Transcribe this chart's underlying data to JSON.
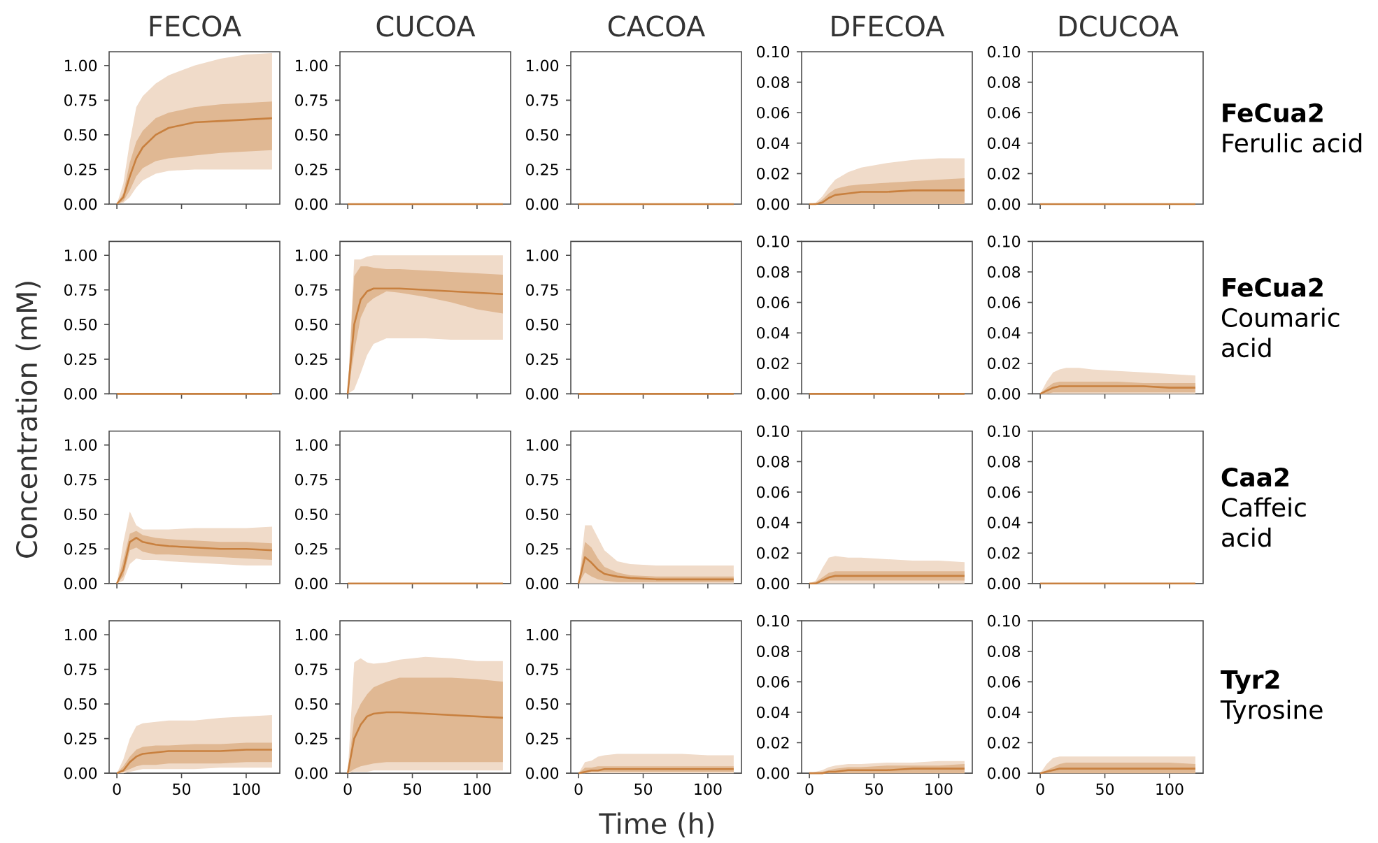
{
  "chart_data": [
    {
      "type": "line",
      "title": "FECOA",
      "x": [
        0,
        5,
        10,
        15,
        20,
        30,
        40,
        60,
        80,
        100,
        120
      ],
      "xlim": [
        -6,
        126
      ],
      "xticks": [
        0,
        50,
        100
      ],
      "ylim": [
        0,
        1.1
      ],
      "yticks": [
        {
          "value": 0,
          "label": "0.00"
        },
        {
          "value": 0.25,
          "label": "0.25"
        },
        {
          "value": 0.5,
          "label": "0.50"
        },
        {
          "value": 0.75,
          "label": "0.75"
        },
        {
          "value": 1,
          "label": "1.00"
        }
      ],
      "tick_labels": "y",
      "series": [
        {
          "color": "#c8803f",
          "values": [
            null,
            null,
            null,
            null,
            null,
            null,
            null,
            null,
            null,
            null,
            null
          ],
          "lower": [
            0,
            0.01,
            0.05,
            0.12,
            0.17,
            0.22,
            0.24,
            0.25,
            0.25,
            0.25,
            0.25
          ],
          "upper": [
            0,
            0.15,
            0.45,
            0.7,
            0.78,
            0.87,
            0.93,
            1.0,
            1.05,
            1.08,
            1.09
          ]
        },
        {
          "color": "#c8803f",
          "values": [
            0,
            0.05,
            0.2,
            0.33,
            0.41,
            0.5,
            0.55,
            0.59,
            0.6,
            0.61,
            0.62
          ],
          "lower": [
            0,
            0.02,
            0.1,
            0.2,
            0.26,
            0.31,
            0.33,
            0.35,
            0.37,
            0.38,
            0.39
          ],
          "upper": [
            0,
            0.08,
            0.3,
            0.45,
            0.53,
            0.62,
            0.66,
            0.7,
            0.72,
            0.73,
            0.74
          ]
        }
      ]
    },
    {
      "type": "line",
      "title": "CUCOA",
      "x": [
        0,
        5,
        10,
        15,
        20,
        30,
        40,
        60,
        80,
        100,
        120
      ],
      "xlim": [
        -6,
        126
      ],
      "xticks": [
        0,
        50,
        100
      ],
      "ylim": [
        0,
        1.1
      ],
      "yticks": [
        {
          "value": 0,
          "label": "0.00"
        },
        {
          "value": 0.25,
          "label": "0.25"
        },
        {
          "value": 0.5,
          "label": "0.50"
        },
        {
          "value": 0.75,
          "label": "0.75"
        },
        {
          "value": 1,
          "label": "1.00"
        }
      ],
      "tick_labels": "y",
      "series": [
        {
          "color": "#c8803f",
          "values": [
            0,
            0,
            0,
            0,
            0,
            0,
            0,
            0,
            0,
            0,
            0
          ]
        }
      ]
    },
    {
      "type": "line",
      "title": "CACOA",
      "x": [
        0,
        5,
        10,
        15,
        20,
        30,
        40,
        60,
        80,
        100,
        120
      ],
      "xlim": [
        -6,
        126
      ],
      "xticks": [
        0,
        50,
        100
      ],
      "ylim": [
        0,
        1.1
      ],
      "yticks": [
        {
          "value": 0,
          "label": "0.00"
        },
        {
          "value": 0.25,
          "label": "0.25"
        },
        {
          "value": 0.5,
          "label": "0.50"
        },
        {
          "value": 0.75,
          "label": "0.75"
        },
        {
          "value": 1,
          "label": "1.00"
        }
      ],
      "tick_labels": "y",
      "series": [
        {
          "color": "#c8803f",
          "values": [
            0,
            0,
            0,
            0,
            0,
            0,
            0,
            0,
            0,
            0,
            0
          ]
        }
      ]
    },
    {
      "type": "line",
      "title": "DFECOA",
      "x": [
        0,
        5,
        10,
        15,
        20,
        30,
        40,
        60,
        80,
        100,
        120
      ],
      "xlim": [
        -6,
        126
      ],
      "xticks": [
        0,
        50,
        100
      ],
      "ylim": [
        0,
        0.1
      ],
      "yticks": [
        {
          "value": 0,
          "label": "0.00"
        },
        {
          "value": 0.02,
          "label": "0.02"
        },
        {
          "value": 0.04,
          "label": "0.04"
        },
        {
          "value": 0.06,
          "label": "0.06"
        },
        {
          "value": 0.08,
          "label": "0.08"
        },
        {
          "value": 0.1,
          "label": "0.10"
        }
      ],
      "tick_labels": "y",
      "series": [
        {
          "color": "#c8803f",
          "values": [
            null,
            null,
            null,
            null,
            null,
            null,
            null,
            null,
            null,
            null,
            null
          ],
          "lower": [
            0,
            0,
            0,
            0,
            0,
            0,
            0,
            0,
            0,
            0,
            0
          ],
          "upper": [
            0,
            0.001,
            0.005,
            0.011,
            0.016,
            0.021,
            0.024,
            0.027,
            0.029,
            0.03,
            0.03
          ]
        },
        {
          "color": "#c8803f",
          "values": [
            0,
            0,
            0.001,
            0.004,
            0.006,
            0.007,
            0.008,
            0.008,
            0.009,
            0.009,
            0.009
          ],
          "lower": [
            0,
            0,
            0,
            0,
            0,
            0,
            0,
            0,
            0,
            0,
            0
          ],
          "upper": [
            0,
            0,
            0.003,
            0.007,
            0.01,
            0.012,
            0.013,
            0.014,
            0.015,
            0.016,
            0.017
          ]
        }
      ]
    },
    {
      "type": "line",
      "title": "DCUCOA",
      "x": [
        0,
        5,
        10,
        15,
        20,
        30,
        40,
        60,
        80,
        100,
        120
      ],
      "xlim": [
        -6,
        126
      ],
      "xticks": [
        0,
        50,
        100
      ],
      "ylim": [
        0,
        0.1
      ],
      "yticks": [
        {
          "value": 0,
          "label": "0.00"
        },
        {
          "value": 0.02,
          "label": "0.02"
        },
        {
          "value": 0.04,
          "label": "0.04"
        },
        {
          "value": 0.06,
          "label": "0.06"
        },
        {
          "value": 0.08,
          "label": "0.08"
        },
        {
          "value": 0.1,
          "label": "0.10"
        }
      ],
      "tick_labels": "y",
      "annotations": [
        "FeCua2",
        "Ferulic acid"
      ],
      "series": [
        {
          "color": "#c8803f",
          "values": [
            0,
            0,
            0,
            0,
            0,
            0,
            0,
            0,
            0,
            0,
            0
          ]
        }
      ]
    },
    {
      "type": "line",
      "ylabel": "Concentration (mM)",
      "x": [
        0,
        5,
        10,
        15,
        20,
        30,
        40,
        60,
        80,
        100,
        120
      ],
      "xlim": [
        -6,
        126
      ],
      "xticks": [
        0,
        50,
        100
      ],
      "ylim": [
        0,
        1.1
      ],
      "yticks": [
        {
          "value": 0,
          "label": "0.00"
        },
        {
          "value": 0.25,
          "label": "0.25"
        },
        {
          "value": 0.5,
          "label": "0.50"
        },
        {
          "value": 0.75,
          "label": "0.75"
        },
        {
          "value": 1,
          "label": "1.00"
        }
      ],
      "tick_labels": "y",
      "series": [
        {
          "color": "#c8803f",
          "values": [
            0,
            0,
            0,
            0,
            0,
            0,
            0,
            0,
            0,
            0,
            0
          ]
        }
      ]
    },
    {
      "type": "line",
      "x": [
        0,
        5,
        10,
        15,
        20,
        30,
        40,
        60,
        80,
        100,
        120
      ],
      "xlim": [
        -6,
        126
      ],
      "xticks": [
        0,
        50,
        100
      ],
      "ylim": [
        0,
        1.1
      ],
      "yticks": [
        {
          "value": 0,
          "label": "0.00"
        },
        {
          "value": 0.25,
          "label": "0.25"
        },
        {
          "value": 0.5,
          "label": "0.50"
        },
        {
          "value": 0.75,
          "label": "0.75"
        },
        {
          "value": 1,
          "label": "1.00"
        }
      ],
      "tick_labels": "y",
      "series": [
        {
          "color": "#c8803f",
          "values": [
            null,
            null,
            null,
            null,
            null,
            null,
            null,
            null,
            null,
            null,
            null
          ],
          "lower": [
            0,
            0.03,
            0.15,
            0.28,
            0.36,
            0.4,
            0.4,
            0.4,
            0.39,
            0.39,
            0.39
          ],
          "upper": [
            0,
            0.97,
            0.97,
            0.99,
            1.0,
            1.0,
            1.0,
            1.0,
            1.0,
            1.0,
            1.0
          ]
        },
        {
          "color": "#c8803f",
          "values": [
            0,
            0.5,
            0.68,
            0.74,
            0.76,
            0.76,
            0.76,
            0.75,
            0.74,
            0.73,
            0.72
          ],
          "lower": [
            0,
            0.3,
            0.55,
            0.65,
            0.69,
            0.74,
            0.73,
            0.7,
            0.66,
            0.61,
            0.58
          ],
          "upper": [
            0,
            0.85,
            0.92,
            0.92,
            0.91,
            0.9,
            0.9,
            0.89,
            0.88,
            0.87,
            0.86
          ]
        }
      ]
    },
    {
      "type": "line",
      "x": [
        0,
        5,
        10,
        15,
        20,
        30,
        40,
        60,
        80,
        100,
        120
      ],
      "xlim": [
        -6,
        126
      ],
      "xticks": [
        0,
        50,
        100
      ],
      "ylim": [
        0,
        1.1
      ],
      "yticks": [
        {
          "value": 0,
          "label": "0.00"
        },
        {
          "value": 0.25,
          "label": "0.25"
        },
        {
          "value": 0.5,
          "label": "0.50"
        },
        {
          "value": 0.75,
          "label": "0.75"
        },
        {
          "value": 1,
          "label": "1.00"
        }
      ],
      "tick_labels": "y",
      "series": [
        {
          "color": "#c8803f",
          "values": [
            0,
            0,
            0,
            0,
            0,
            0,
            0,
            0,
            0,
            0,
            0
          ]
        }
      ]
    },
    {
      "type": "line",
      "x": [
        0,
        5,
        10,
        15,
        20,
        30,
        40,
        60,
        80,
        100,
        120
      ],
      "xlim": [
        -6,
        126
      ],
      "xticks": [
        0,
        50,
        100
      ],
      "ylim": [
        0,
        0.1
      ],
      "yticks": [
        {
          "value": 0,
          "label": "0.00"
        },
        {
          "value": 0.02,
          "label": "0.02"
        },
        {
          "value": 0.04,
          "label": "0.04"
        },
        {
          "value": 0.06,
          "label": "0.06"
        },
        {
          "value": 0.08,
          "label": "0.08"
        },
        {
          "value": 0.1,
          "label": "0.10"
        }
      ],
      "tick_labels": "y",
      "series": [
        {
          "color": "#c8803f",
          "values": [
            0,
            0,
            0,
            0,
            0,
            0,
            0,
            0,
            0,
            0,
            0
          ]
        }
      ]
    },
    {
      "type": "line",
      "x": [
        0,
        5,
        10,
        15,
        20,
        30,
        40,
        60,
        80,
        100,
        120
      ],
      "xlim": [
        -6,
        126
      ],
      "xticks": [
        0,
        50,
        100
      ],
      "ylim": [
        0,
        0.1
      ],
      "yticks": [
        {
          "value": 0,
          "label": "0.00"
        },
        {
          "value": 0.02,
          "label": "0.02"
        },
        {
          "value": 0.04,
          "label": "0.04"
        },
        {
          "value": 0.06,
          "label": "0.06"
        },
        {
          "value": 0.08,
          "label": "0.08"
        },
        {
          "value": 0.1,
          "label": "0.10"
        }
      ],
      "tick_labels": "y",
      "annotations": [
        "FeCua2",
        "Coumaric",
        "acid"
      ],
      "series": [
        {
          "color": "#c8803f",
          "values": [
            null,
            null,
            null,
            null,
            null,
            null,
            null,
            null,
            null,
            null,
            null
          ],
          "lower": [
            0,
            0,
            0,
            0,
            0,
            0,
            0,
            0,
            0,
            0,
            0
          ],
          "upper": [
            0,
            0.008,
            0.014,
            0.016,
            0.017,
            0.017,
            0.016,
            0.015,
            0.014,
            0.013,
            0.012
          ]
        },
        {
          "color": "#c8803f",
          "values": [
            0,
            0.002,
            0.004,
            0.005,
            0.005,
            0.005,
            0.005,
            0.005,
            0.005,
            0.004,
            0.004
          ],
          "lower": [
            0,
            0,
            0.001,
            0.001,
            0.001,
            0.001,
            0.001,
            0.001,
            0.001,
            0.001,
            0.001
          ],
          "upper": [
            0,
            0.004,
            0.007,
            0.008,
            0.008,
            0.008,
            0.008,
            0.008,
            0.007,
            0.007,
            0.007
          ]
        }
      ]
    },
    {
      "type": "line",
      "x": [
        0,
        5,
        10,
        15,
        20,
        30,
        40,
        60,
        80,
        100,
        120
      ],
      "xlim": [
        -6,
        126
      ],
      "xticks": [
        0,
        50,
        100
      ],
      "ylim": [
        0,
        1.1
      ],
      "yticks": [
        {
          "value": 0,
          "label": "0.00"
        },
        {
          "value": 0.25,
          "label": "0.25"
        },
        {
          "value": 0.5,
          "label": "0.50"
        },
        {
          "value": 0.75,
          "label": "0.75"
        },
        {
          "value": 1,
          "label": "1.00"
        }
      ],
      "tick_labels": "y",
      "series": [
        {
          "color": "#c8803f",
          "values": [
            null,
            null,
            null,
            null,
            null,
            null,
            null,
            null,
            null,
            null,
            null
          ],
          "lower": [
            0,
            0.02,
            0.14,
            0.18,
            0.17,
            0.17,
            0.16,
            0.15,
            0.14,
            0.13,
            0.13
          ],
          "upper": [
            0,
            0.3,
            0.52,
            0.42,
            0.39,
            0.39,
            0.39,
            0.4,
            0.4,
            0.4,
            0.41
          ]
        },
        {
          "color": "#c8803f",
          "values": [
            0,
            0.1,
            0.3,
            0.33,
            0.3,
            0.28,
            0.27,
            0.26,
            0.25,
            0.25,
            0.24
          ],
          "lower": [
            0,
            0.05,
            0.24,
            0.26,
            0.23,
            0.21,
            0.21,
            0.2,
            0.19,
            0.18,
            0.17
          ],
          "upper": [
            0,
            0.17,
            0.36,
            0.38,
            0.35,
            0.33,
            0.32,
            0.31,
            0.3,
            0.3,
            0.29
          ]
        }
      ]
    },
    {
      "type": "line",
      "x": [
        0,
        5,
        10,
        15,
        20,
        30,
        40,
        60,
        80,
        100,
        120
      ],
      "xlim": [
        -6,
        126
      ],
      "xticks": [
        0,
        50,
        100
      ],
      "ylim": [
        0,
        1.1
      ],
      "yticks": [
        {
          "value": 0,
          "label": "0.00"
        },
        {
          "value": 0.25,
          "label": "0.25"
        },
        {
          "value": 0.5,
          "label": "0.50"
        },
        {
          "value": 0.75,
          "label": "0.75"
        },
        {
          "value": 1,
          "label": "1.00"
        }
      ],
      "tick_labels": "y",
      "series": [
        {
          "color": "#c8803f",
          "values": [
            0,
            0,
            0,
            0,
            0,
            0,
            0,
            0,
            0,
            0,
            0
          ]
        }
      ]
    },
    {
      "type": "line",
      "x": [
        0,
        5,
        10,
        15,
        20,
        30,
        40,
        60,
        80,
        100,
        120
      ],
      "xlim": [
        -6,
        126
      ],
      "xticks": [
        0,
        50,
        100
      ],
      "ylim": [
        0,
        1.1
      ],
      "yticks": [
        {
          "value": 0,
          "label": "0.00"
        },
        {
          "value": 0.25,
          "label": "0.25"
        },
        {
          "value": 0.5,
          "label": "0.50"
        },
        {
          "value": 0.75,
          "label": "0.75"
        },
        {
          "value": 1,
          "label": "1.00"
        }
      ],
      "tick_labels": "y",
      "series": [
        {
          "color": "#c8803f",
          "values": [
            null,
            null,
            null,
            null,
            null,
            null,
            null,
            null,
            null,
            null,
            null
          ],
          "lower": [
            0,
            0,
            0,
            0,
            0,
            0,
            0,
            0,
            0,
            0,
            0
          ],
          "upper": [
            0,
            0.42,
            0.42,
            0.33,
            0.24,
            0.16,
            0.14,
            0.13,
            0.13,
            0.13,
            0.13
          ]
        },
        {
          "color": "#c8803f",
          "values": [
            0,
            0.19,
            0.15,
            0.1,
            0.07,
            0.05,
            0.04,
            0.03,
            0.03,
            0.03,
            0.03
          ],
          "lower": [
            0,
            0.08,
            0.05,
            0.03,
            0.02,
            0.01,
            0.01,
            0.01,
            0.01,
            0.01,
            0.01
          ],
          "upper": [
            0,
            0.3,
            0.26,
            0.18,
            0.12,
            0.08,
            0.06,
            0.05,
            0.05,
            0.05,
            0.05
          ]
        }
      ]
    },
    {
      "type": "line",
      "x": [
        0,
        5,
        10,
        15,
        20,
        30,
        40,
        60,
        80,
        100,
        120
      ],
      "xlim": [
        -6,
        126
      ],
      "xticks": [
        0,
        50,
        100
      ],
      "ylim": [
        0,
        0.1
      ],
      "yticks": [
        {
          "value": 0,
          "label": "0.00"
        },
        {
          "value": 0.02,
          "label": "0.02"
        },
        {
          "value": 0.04,
          "label": "0.04"
        },
        {
          "value": 0.06,
          "label": "0.06"
        },
        {
          "value": 0.08,
          "label": "0.08"
        },
        {
          "value": 0.1,
          "label": "0.10"
        }
      ],
      "tick_labels": "y",
      "series": [
        {
          "color": "#c8803f",
          "values": [
            null,
            null,
            null,
            null,
            null,
            null,
            null,
            null,
            null,
            null,
            null
          ],
          "lower": [
            0,
            0,
            0,
            0,
            0,
            0,
            0,
            0,
            0,
            0,
            0
          ],
          "upper": [
            0,
            0.002,
            0.01,
            0.017,
            0.018,
            0.017,
            0.017,
            0.016,
            0.015,
            0.015,
            0.014
          ]
        },
        {
          "color": "#c8803f",
          "values": [
            0,
            0,
            0.002,
            0.004,
            0.005,
            0.005,
            0.005,
            0.005,
            0.005,
            0.005,
            0.005
          ],
          "lower": [
            0,
            0,
            0.001,
            0.002,
            0.002,
            0.002,
            0.002,
            0.002,
            0.002,
            0.002,
            0.002
          ],
          "upper": [
            0,
            0.001,
            0.004,
            0.007,
            0.008,
            0.008,
            0.008,
            0.008,
            0.008,
            0.008,
            0.008
          ]
        }
      ]
    },
    {
      "type": "line",
      "x": [
        0,
        5,
        10,
        15,
        20,
        30,
        40,
        60,
        80,
        100,
        120
      ],
      "xlim": [
        -6,
        126
      ],
      "xticks": [
        0,
        50,
        100
      ],
      "ylim": [
        0,
        0.1
      ],
      "yticks": [
        {
          "value": 0,
          "label": "0.00"
        },
        {
          "value": 0.02,
          "label": "0.02"
        },
        {
          "value": 0.04,
          "label": "0.04"
        },
        {
          "value": 0.06,
          "label": "0.06"
        },
        {
          "value": 0.08,
          "label": "0.08"
        },
        {
          "value": 0.1,
          "label": "0.10"
        }
      ],
      "tick_labels": "y",
      "annotations": [
        "Caa2",
        "Caffeic",
        "acid"
      ],
      "series": [
        {
          "color": "#c8803f",
          "values": [
            0,
            0,
            0,
            0,
            0,
            0,
            0,
            0,
            0,
            0,
            0
          ]
        }
      ]
    },
    {
      "type": "line",
      "x": [
        0,
        5,
        10,
        15,
        20,
        30,
        40,
        60,
        80,
        100,
        120
      ],
      "xlim": [
        -6,
        126
      ],
      "xticks": [
        0,
        50,
        100
      ],
      "ylim": [
        0,
        1.1
      ],
      "yticks": [
        {
          "value": 0,
          "label": "0.00"
        },
        {
          "value": 0.25,
          "label": "0.25"
        },
        {
          "value": 0.5,
          "label": "0.50"
        },
        {
          "value": 0.75,
          "label": "0.75"
        },
        {
          "value": 1,
          "label": "1.00"
        }
      ],
      "series": [
        {
          "color": "#c8803f",
          "values": [
            null,
            null,
            null,
            null,
            null,
            null,
            null,
            null,
            null,
            null,
            null
          ],
          "lower": [
            0,
            0,
            0.01,
            0.02,
            0.03,
            0.03,
            0.03,
            0.03,
            0.04,
            0.04,
            0.04
          ],
          "upper": [
            0,
            0.1,
            0.25,
            0.34,
            0.36,
            0.37,
            0.38,
            0.38,
            0.4,
            0.41,
            0.42
          ]
        },
        {
          "color": "#c8803f",
          "values": [
            0,
            0.02,
            0.08,
            0.12,
            0.14,
            0.15,
            0.16,
            0.16,
            0.16,
            0.17,
            0.17
          ],
          "lower": [
            0,
            0.01,
            0.03,
            0.05,
            0.06,
            0.06,
            0.07,
            0.07,
            0.07,
            0.08,
            0.08
          ],
          "upper": [
            0,
            0.05,
            0.12,
            0.17,
            0.19,
            0.2,
            0.2,
            0.21,
            0.21,
            0.22,
            0.22
          ]
        }
      ]
    },
    {
      "type": "line",
      "x": [
        0,
        5,
        10,
        15,
        20,
        30,
        40,
        60,
        80,
        100,
        120
      ],
      "xlim": [
        -6,
        126
      ],
      "xticks": [
        0,
        50,
        100
      ],
      "ylim": [
        0,
        1.1
      ],
      "yticks": [
        {
          "value": 0,
          "label": "0.00"
        },
        {
          "value": 0.25,
          "label": "0.25"
        },
        {
          "value": 0.5,
          "label": "0.50"
        },
        {
          "value": 0.75,
          "label": "0.75"
        },
        {
          "value": 1,
          "label": "1.00"
        }
      ],
      "series": [
        {
          "color": "#c8803f",
          "values": [
            null,
            null,
            null,
            null,
            null,
            null,
            null,
            null,
            null,
            null,
            null
          ],
          "lower": [
            0,
            0.01,
            0.01,
            0.01,
            0.02,
            0.02,
            0.02,
            0.02,
            0.02,
            0.02,
            0.02
          ],
          "upper": [
            0,
            0.8,
            0.83,
            0.8,
            0.79,
            0.8,
            0.82,
            0.84,
            0.83,
            0.81,
            0.81
          ]
        },
        {
          "color": "#c8803f",
          "values": [
            0,
            0.25,
            0.35,
            0.41,
            0.43,
            0.44,
            0.44,
            0.43,
            0.42,
            0.41,
            0.4
          ],
          "lower": [
            0,
            0.03,
            0.05,
            0.06,
            0.07,
            0.08,
            0.08,
            0.08,
            0.08,
            0.08,
            0.08
          ],
          "upper": [
            0,
            0.4,
            0.5,
            0.57,
            0.62,
            0.66,
            0.69,
            0.69,
            0.69,
            0.68,
            0.66
          ]
        }
      ]
    },
    {
      "type": "line",
      "xlabel": "Time (h)",
      "x": [
        0,
        5,
        10,
        15,
        20,
        30,
        40,
        60,
        80,
        100,
        120
      ],
      "xlim": [
        -6,
        126
      ],
      "xticks": [
        0,
        50,
        100
      ],
      "ylim": [
        0,
        1.1
      ],
      "yticks": [
        {
          "value": 0,
          "label": "0.00"
        },
        {
          "value": 0.25,
          "label": "0.25"
        },
        {
          "value": 0.5,
          "label": "0.50"
        },
        {
          "value": 0.75,
          "label": "0.75"
        },
        {
          "value": 1,
          "label": "1.00"
        }
      ],
      "series": [
        {
          "color": "#c8803f",
          "values": [
            null,
            null,
            null,
            null,
            null,
            null,
            null,
            null,
            null,
            null,
            null
          ],
          "lower": [
            0,
            0,
            0,
            0,
            0,
            0,
            0,
            0,
            0,
            0,
            0
          ],
          "upper": [
            0,
            0.08,
            0.09,
            0.12,
            0.13,
            0.14,
            0.14,
            0.14,
            0.14,
            0.13,
            0.13
          ]
        },
        {
          "color": "#c8803f",
          "values": [
            0,
            0.01,
            0.02,
            0.02,
            0.03,
            0.03,
            0.03,
            0.03,
            0.03,
            0.03,
            0.03
          ],
          "lower": [
            0,
            0,
            0.01,
            0.01,
            0.01,
            0.01,
            0.01,
            0.01,
            0.01,
            0.01,
            0.01
          ],
          "upper": [
            0,
            0.04,
            0.04,
            0.05,
            0.05,
            0.05,
            0.05,
            0.05,
            0.05,
            0.05,
            0.05
          ]
        }
      ]
    },
    {
      "type": "line",
      "x": [
        0,
        5,
        10,
        15,
        20,
        30,
        40,
        60,
        80,
        100,
        120
      ],
      "xlim": [
        -6,
        126
      ],
      "xticks": [
        0,
        50,
        100
      ],
      "ylim": [
        0,
        0.1
      ],
      "yticks": [
        {
          "value": 0,
          "label": "0.00"
        },
        {
          "value": 0.02,
          "label": "0.02"
        },
        {
          "value": 0.04,
          "label": "0.04"
        },
        {
          "value": 0.06,
          "label": "0.06"
        },
        {
          "value": 0.08,
          "label": "0.08"
        },
        {
          "value": 0.1,
          "label": "0.10"
        }
      ],
      "series": [
        {
          "color": "#c8803f",
          "values": [
            null,
            null,
            null,
            null,
            null,
            null,
            null,
            null,
            null,
            null,
            null
          ],
          "lower": [
            0,
            0,
            0,
            0,
            0,
            0,
            0,
            0,
            0,
            0,
            0
          ],
          "upper": [
            0,
            0.001,
            0.002,
            0.004,
            0.005,
            0.006,
            0.006,
            0.007,
            0.007,
            0.008,
            0.008
          ]
        },
        {
          "color": "#c8803f",
          "values": [
            0,
            0,
            0,
            0.001,
            0.001,
            0.002,
            0.002,
            0.002,
            0.003,
            0.003,
            0.003
          ],
          "lower": [
            0,
            0,
            0,
            0,
            0,
            0,
            0,
            0,
            0,
            0,
            0
          ],
          "upper": [
            0,
            0,
            0.001,
            0.002,
            0.003,
            0.004,
            0.004,
            0.005,
            0.005,
            0.005,
            0.006
          ]
        }
      ]
    },
    {
      "type": "line",
      "x": [
        0,
        5,
        10,
        15,
        20,
        30,
        40,
        60,
        80,
        100,
        120
      ],
      "xlim": [
        -6,
        126
      ],
      "xticks": [
        0,
        50,
        100
      ],
      "ylim": [
        0,
        0.1
      ],
      "yticks": [
        {
          "value": 0,
          "label": "0.00"
        },
        {
          "value": 0.02,
          "label": "0.02"
        },
        {
          "value": 0.04,
          "label": "0.04"
        },
        {
          "value": 0.06,
          "label": "0.06"
        },
        {
          "value": 0.08,
          "label": "0.08"
        },
        {
          "value": 0.1,
          "label": "0.10"
        }
      ],
      "annotations": [
        "Tyr2",
        "Tyrosine"
      ],
      "series": [
        {
          "color": "#c8803f",
          "values": [
            null,
            null,
            null,
            null,
            null,
            null,
            null,
            null,
            null,
            null,
            null
          ],
          "lower": [
            0,
            0,
            0,
            0,
            0,
            0,
            0,
            0,
            0,
            0,
            0
          ],
          "upper": [
            0,
            0.006,
            0.01,
            0.011,
            0.011,
            0.011,
            0.011,
            0.011,
            0.011,
            0.011,
            0.011
          ]
        },
        {
          "color": "#c8803f",
          "values": [
            0,
            0.001,
            0.002,
            0.003,
            0.003,
            0.003,
            0.003,
            0.003,
            0.003,
            0.003,
            0.003
          ],
          "lower": [
            0,
            0,
            0,
            0,
            0,
            0,
            0,
            0,
            0,
            0,
            0
          ],
          "upper": [
            0,
            0.002,
            0.004,
            0.006,
            0.007,
            0.007,
            0.007,
            0.007,
            0.007,
            0.007,
            0.006
          ]
        }
      ]
    }
  ]
}
